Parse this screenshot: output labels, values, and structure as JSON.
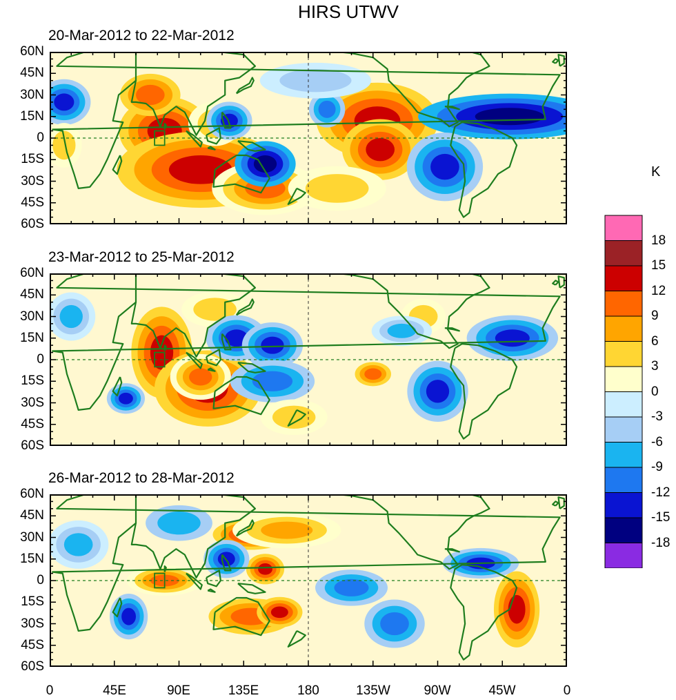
{
  "title": "HIRS UTWV",
  "unit": "K",
  "panels": [
    {
      "title": "20-Mar-2012 to 22-Mar-2012"
    },
    {
      "title": "23-Mar-2012 to 25-Mar-2012"
    },
    {
      "title": "26-Mar-2012 to 28-Mar-2012"
    }
  ],
  "lat_labels": [
    "60N",
    "45N",
    "30N",
    "15N",
    "0",
    "15S",
    "30S",
    "45S",
    "60S"
  ],
  "lon_labels": [
    "0",
    "45E",
    "90E",
    "135E",
    "180",
    "135W",
    "90W",
    "45W",
    "0"
  ],
  "colorbar": {
    "levels": [
      "18",
      "15",
      "12",
      "9",
      "6",
      "3",
      "0",
      "-3",
      "-6",
      "-9",
      "-12",
      "-15",
      "-18"
    ],
    "colors": [
      "#ff69b4",
      "#9b2226",
      "#cc0000",
      "#ff6600",
      "#ffa500",
      "#ffd633",
      "#ffffcc",
      "#cceeff",
      "#a6cef5",
      "#1ab4f0",
      "#1e78f0",
      "#0a14d2",
      "#000080",
      "#8a2be2"
    ]
  },
  "chart_data": {
    "type": "heatmap",
    "title": "HIRS UTWV",
    "colorbar_label": "K",
    "color_levels": [
      -18,
      -15,
      -12,
      -9,
      -6,
      -3,
      0,
      3,
      6,
      9,
      12,
      15,
      18
    ],
    "lon_ticks": [
      "0",
      "45E",
      "90E",
      "135E",
      "180",
      "135W",
      "90W",
      "45W",
      "0"
    ],
    "lat_ticks": [
      "60N",
      "45N",
      "30N",
      "15N",
      "0",
      "15S",
      "30S",
      "45S",
      "60S"
    ],
    "xlim": [
      0,
      360
    ],
    "ylim": [
      -60,
      60
    ],
    "panels": [
      {
        "period": "20-Mar-2012 to 22-Mar-2012",
        "features": [
          {
            "lon": 80,
            "lat": 5,
            "value": 15,
            "rx": 12,
            "ry": 9
          },
          {
            "lon": 105,
            "lat": -22,
            "value": 14,
            "rx": 22,
            "ry": 10
          },
          {
            "lon": 70,
            "lat": 30,
            "value": 10,
            "rx": 10,
            "ry": 7
          },
          {
            "lon": 150,
            "lat": -35,
            "value": 12,
            "rx": 14,
            "ry": 7
          },
          {
            "lon": 115,
            "lat": 10,
            "value": 6,
            "rx": 12,
            "ry": 10
          },
          {
            "lon": 228,
            "lat": 12,
            "value": 15,
            "rx": 16,
            "ry": 10
          },
          {
            "lon": 230,
            "lat": -8,
            "value": 13,
            "rx": 10,
            "ry": 8
          },
          {
            "lon": 320,
            "lat": 15,
            "value": -17,
            "rx": 24,
            "ry": 6
          },
          {
            "lon": 275,
            "lat": -20,
            "value": -13,
            "rx": 10,
            "ry": 9
          },
          {
            "lon": 150,
            "lat": -18,
            "value": -15,
            "rx": 8,
            "ry": 6
          },
          {
            "lon": 125,
            "lat": 12,
            "value": -14,
            "rx": 6,
            "ry": 5
          },
          {
            "lon": 193,
            "lat": 20,
            "value": -11,
            "rx": 6,
            "ry": 6
          },
          {
            "lon": 10,
            "lat": 25,
            "value": -13,
            "rx": 7,
            "ry": 6
          },
          {
            "lon": 10,
            "lat": -5,
            "value": 5,
            "rx": 8,
            "ry": 10
          },
          {
            "lon": 200,
            "lat": -35,
            "value": 4,
            "rx": 22,
            "ry": 10
          },
          {
            "lon": 185,
            "lat": 40,
            "value": -4,
            "rx": 25,
            "ry": 8
          }
        ]
      },
      {
        "period": "23-Mar-2012 to 25-Mar-2012",
        "features": [
          {
            "lon": 78,
            "lat": 5,
            "value": 14,
            "rx": 8,
            "ry": 12
          },
          {
            "lon": 110,
            "lat": -20,
            "value": 14,
            "rx": 14,
            "ry": 10
          },
          {
            "lon": 105,
            "lat": -12,
            "value": 12,
            "rx": 8,
            "ry": 6
          },
          {
            "lon": 115,
            "lat": 35,
            "value": 6,
            "rx": 15,
            "ry": 8
          },
          {
            "lon": 130,
            "lat": 15,
            "value": -14,
            "rx": 8,
            "ry": 6
          },
          {
            "lon": 155,
            "lat": 10,
            "value": -13,
            "rx": 8,
            "ry": 6
          },
          {
            "lon": 155,
            "lat": -15,
            "value": -10,
            "rx": 14,
            "ry": 7
          },
          {
            "lon": 270,
            "lat": -22,
            "value": -14,
            "rx": 8,
            "ry": 8
          },
          {
            "lon": 322,
            "lat": 15,
            "value": -14,
            "rx": 12,
            "ry": 6
          },
          {
            "lon": 260,
            "lat": 30,
            "value": 6,
            "rx": 10,
            "ry": 8
          },
          {
            "lon": 225,
            "lat": -10,
            "value": 10,
            "rx": 6,
            "ry": 4
          },
          {
            "lon": 53,
            "lat": -27,
            "value": -14,
            "rx": 5,
            "ry": 4
          },
          {
            "lon": 15,
            "lat": 30,
            "value": -8,
            "rx": 8,
            "ry": 8
          },
          {
            "lon": 170,
            "lat": -40,
            "value": 5,
            "rx": 15,
            "ry": 8
          },
          {
            "lon": 245,
            "lat": 20,
            "value": -8,
            "rx": 10,
            "ry": 5
          }
        ]
      },
      {
        "period": "26-Mar-2012 to 28-Mar-2012",
        "features": [
          {
            "lon": 140,
            "lat": 32,
            "value": 14,
            "rx": 10,
            "ry": 4
          },
          {
            "lon": 165,
            "lat": 35,
            "value": 9,
            "rx": 18,
            "ry": 6
          },
          {
            "lon": 150,
            "lat": 8,
            "value": 13,
            "rx": 5,
            "ry": 4
          },
          {
            "lon": 80,
            "lat": 0,
            "value": 12,
            "rx": 10,
            "ry": 4
          },
          {
            "lon": 140,
            "lat": -25,
            "value": 10,
            "rx": 14,
            "ry": 6
          },
          {
            "lon": 160,
            "lat": -22,
            "value": 13,
            "rx": 6,
            "ry": 4
          },
          {
            "lon": 325,
            "lat": -20,
            "value": 14,
            "rx": 6,
            "ry": 10
          },
          {
            "lon": 123,
            "lat": 15,
            "value": -14,
            "rx": 6,
            "ry": 5
          },
          {
            "lon": 55,
            "lat": -25,
            "value": -13,
            "rx": 5,
            "ry": 6
          },
          {
            "lon": 300,
            "lat": 12,
            "value": -12,
            "rx": 10,
            "ry": 4
          },
          {
            "lon": 210,
            "lat": -5,
            "value": -10,
            "rx": 12,
            "ry": 6
          },
          {
            "lon": 20,
            "lat": 25,
            "value": -8,
            "rx": 10,
            "ry": 8
          },
          {
            "lon": 90,
            "lat": 40,
            "value": -6,
            "rx": 15,
            "ry": 8
          },
          {
            "lon": 240,
            "lat": -30,
            "value": -9,
            "rx": 10,
            "ry": 8
          }
        ]
      }
    ]
  }
}
